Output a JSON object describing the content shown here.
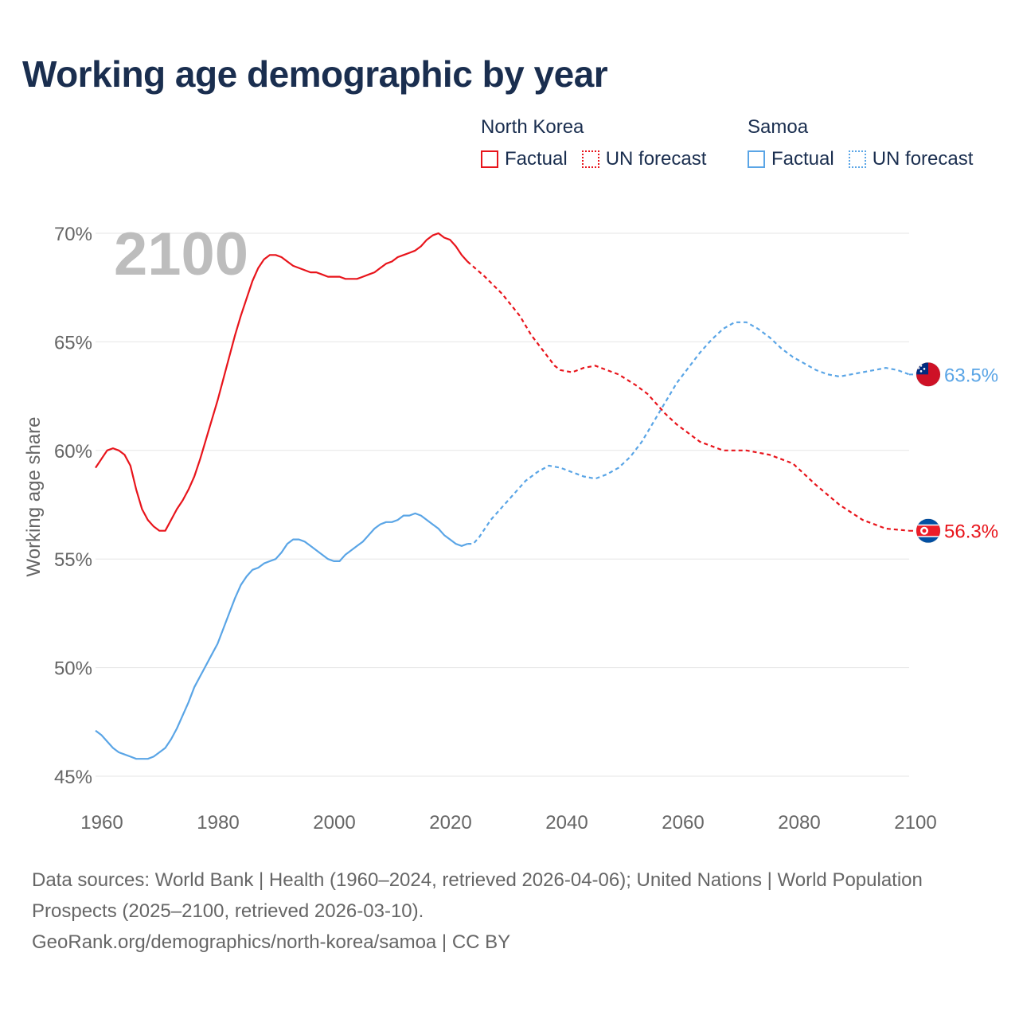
{
  "title": "Working age demographic by year",
  "legend": {
    "groups": [
      {
        "name": "North Korea",
        "factual_label": "Factual",
        "forecast_label": "UN forecast",
        "color": "#e8141b"
      },
      {
        "name": "Samoa",
        "factual_label": "Factual",
        "forecast_label": "UN forecast",
        "color": "#5aa5e6"
      }
    ]
  },
  "year_overlay": "2100",
  "footer": {
    "sources": "Data sources: World Bank | Health (1960–2024, retrieved 2026-04-06); United Nations | World Population Prospects (2025–2100, retrieved 2026-03-10).",
    "credit": "GeoRank.org/demographics/north-korea/samoa | CC BY"
  },
  "chart_data": {
    "type": "line",
    "title": "Working age demographic by year",
    "xlabel": "",
    "ylabel": "Working age share",
    "xlim": [
      1960,
      2100
    ],
    "ylim": [
      45,
      70
    ],
    "x_ticks": [
      1960,
      1980,
      2000,
      2020,
      2040,
      2060,
      2080,
      2100
    ],
    "x_tick_labels": [
      "1960",
      "1980",
      "2000",
      "2020",
      "2040",
      "2060",
      "2080",
      "2100"
    ],
    "y_ticks": [
      45,
      50,
      55,
      60,
      65,
      70
    ],
    "y_tick_labels": [
      "45%",
      "50%",
      "55%",
      "60%",
      "65%",
      "70%"
    ],
    "grid": true,
    "forecast_start": 2024,
    "series": [
      {
        "name": "North Korea",
        "color": "#e8141b",
        "end_label": "56.3%",
        "flag": "north-korea",
        "points": [
          [
            1960,
            59.2
          ],
          [
            1961,
            59.6
          ],
          [
            1962,
            60.0
          ],
          [
            1963,
            60.1
          ],
          [
            1964,
            60.0
          ],
          [
            1965,
            59.8
          ],
          [
            1966,
            59.3
          ],
          [
            1967,
            58.2
          ],
          [
            1968,
            57.3
          ],
          [
            1969,
            56.8
          ],
          [
            1970,
            56.5
          ],
          [
            1971,
            56.3
          ],
          [
            1972,
            56.3
          ],
          [
            1973,
            56.8
          ],
          [
            1974,
            57.3
          ],
          [
            1975,
            57.7
          ],
          [
            1976,
            58.2
          ],
          [
            1977,
            58.8
          ],
          [
            1978,
            59.6
          ],
          [
            1979,
            60.5
          ],
          [
            1980,
            61.4
          ],
          [
            1981,
            62.3
          ],
          [
            1982,
            63.3
          ],
          [
            1983,
            64.3
          ],
          [
            1984,
            65.3
          ],
          [
            1985,
            66.2
          ],
          [
            1986,
            67.0
          ],
          [
            1987,
            67.8
          ],
          [
            1988,
            68.4
          ],
          [
            1989,
            68.8
          ],
          [
            1990,
            69.0
          ],
          [
            1991,
            69.0
          ],
          [
            1992,
            68.9
          ],
          [
            1993,
            68.7
          ],
          [
            1994,
            68.5
          ],
          [
            1995,
            68.4
          ],
          [
            1996,
            68.3
          ],
          [
            1997,
            68.2
          ],
          [
            1998,
            68.2
          ],
          [
            1999,
            68.1
          ],
          [
            2000,
            68.0
          ],
          [
            2001,
            68.0
          ],
          [
            2002,
            68.0
          ],
          [
            2003,
            67.9
          ],
          [
            2004,
            67.9
          ],
          [
            2005,
            67.9
          ],
          [
            2006,
            68.0
          ],
          [
            2007,
            68.1
          ],
          [
            2008,
            68.2
          ],
          [
            2009,
            68.4
          ],
          [
            2010,
            68.6
          ],
          [
            2011,
            68.7
          ],
          [
            2012,
            68.9
          ],
          [
            2013,
            69.0
          ],
          [
            2014,
            69.1
          ],
          [
            2015,
            69.2
          ],
          [
            2016,
            69.4
          ],
          [
            2017,
            69.7
          ],
          [
            2018,
            69.9
          ],
          [
            2019,
            70.0
          ],
          [
            2020,
            69.8
          ],
          [
            2021,
            69.7
          ],
          [
            2022,
            69.4
          ],
          [
            2023,
            69.0
          ],
          [
            2024,
            68.7
          ],
          [
            2027,
            68.0
          ],
          [
            2030,
            67.2
          ],
          [
            2033,
            66.2
          ],
          [
            2035,
            65.3
          ],
          [
            2037,
            64.6
          ],
          [
            2039,
            63.9
          ],
          [
            2040,
            63.7
          ],
          [
            2042,
            63.6
          ],
          [
            2044,
            63.8
          ],
          [
            2046,
            63.9
          ],
          [
            2048,
            63.7
          ],
          [
            2050,
            63.5
          ],
          [
            2053,
            63.0
          ],
          [
            2055,
            62.6
          ],
          [
            2058,
            61.7
          ],
          [
            2060,
            61.2
          ],
          [
            2064,
            60.4
          ],
          [
            2068,
            60.0
          ],
          [
            2072,
            60.0
          ],
          [
            2076,
            59.8
          ],
          [
            2080,
            59.4
          ],
          [
            2084,
            58.4
          ],
          [
            2088,
            57.5
          ],
          [
            2092,
            56.8
          ],
          [
            2096,
            56.4
          ],
          [
            2100,
            56.3
          ]
        ]
      },
      {
        "name": "Samoa",
        "color": "#5aa5e6",
        "end_label": "63.5%",
        "flag": "samoa",
        "points": [
          [
            1960,
            47.1
          ],
          [
            1961,
            46.9
          ],
          [
            1962,
            46.6
          ],
          [
            1963,
            46.3
          ],
          [
            1964,
            46.1
          ],
          [
            1965,
            46.0
          ],
          [
            1966,
            45.9
          ],
          [
            1967,
            45.8
          ],
          [
            1968,
            45.8
          ],
          [
            1969,
            45.8
          ],
          [
            1970,
            45.9
          ],
          [
            1971,
            46.1
          ],
          [
            1972,
            46.3
          ],
          [
            1973,
            46.7
          ],
          [
            1974,
            47.2
          ],
          [
            1975,
            47.8
          ],
          [
            1976,
            48.4
          ],
          [
            1977,
            49.1
          ],
          [
            1978,
            49.6
          ],
          [
            1979,
            50.1
          ],
          [
            1980,
            50.6
          ],
          [
            1981,
            51.1
          ],
          [
            1982,
            51.8
          ],
          [
            1983,
            52.5
          ],
          [
            1984,
            53.2
          ],
          [
            1985,
            53.8
          ],
          [
            1986,
            54.2
          ],
          [
            1987,
            54.5
          ],
          [
            1988,
            54.6
          ],
          [
            1989,
            54.8
          ],
          [
            1990,
            54.9
          ],
          [
            1991,
            55.0
          ],
          [
            1992,
            55.3
          ],
          [
            1993,
            55.7
          ],
          [
            1994,
            55.9
          ],
          [
            1995,
            55.9
          ],
          [
            1996,
            55.8
          ],
          [
            1997,
            55.6
          ],
          [
            1998,
            55.4
          ],
          [
            1999,
            55.2
          ],
          [
            2000,
            55.0
          ],
          [
            2001,
            54.9
          ],
          [
            2002,
            54.9
          ],
          [
            2003,
            55.2
          ],
          [
            2004,
            55.4
          ],
          [
            2005,
            55.6
          ],
          [
            2006,
            55.8
          ],
          [
            2007,
            56.1
          ],
          [
            2008,
            56.4
          ],
          [
            2009,
            56.6
          ],
          [
            2010,
            56.7
          ],
          [
            2011,
            56.7
          ],
          [
            2012,
            56.8
          ],
          [
            2013,
            57.0
          ],
          [
            2014,
            57.0
          ],
          [
            2015,
            57.1
          ],
          [
            2016,
            57.0
          ],
          [
            2017,
            56.8
          ],
          [
            2018,
            56.6
          ],
          [
            2019,
            56.4
          ],
          [
            2020,
            56.1
          ],
          [
            2021,
            55.9
          ],
          [
            2022,
            55.7
          ],
          [
            2023,
            55.6
          ],
          [
            2024,
            55.7
          ],
          [
            2025,
            55.7
          ],
          [
            2026,
            56.0
          ],
          [
            2028,
            56.8
          ],
          [
            2030,
            57.4
          ],
          [
            2032,
            58.0
          ],
          [
            2034,
            58.6
          ],
          [
            2036,
            59.0
          ],
          [
            2038,
            59.3
          ],
          [
            2040,
            59.2
          ],
          [
            2042,
            59.0
          ],
          [
            2044,
            58.8
          ],
          [
            2046,
            58.7
          ],
          [
            2048,
            58.9
          ],
          [
            2050,
            59.2
          ],
          [
            2052,
            59.7
          ],
          [
            2054,
            60.4
          ],
          [
            2056,
            61.3
          ],
          [
            2058,
            62.2
          ],
          [
            2060,
            63.1
          ],
          [
            2062,
            63.8
          ],
          [
            2064,
            64.5
          ],
          [
            2066,
            65.1
          ],
          [
            2068,
            65.6
          ],
          [
            2070,
            65.9
          ],
          [
            2072,
            65.9
          ],
          [
            2074,
            65.6
          ],
          [
            2076,
            65.2
          ],
          [
            2078,
            64.7
          ],
          [
            2080,
            64.3
          ],
          [
            2082,
            64.0
          ],
          [
            2084,
            63.7
          ],
          [
            2086,
            63.5
          ],
          [
            2088,
            63.4
          ],
          [
            2090,
            63.5
          ],
          [
            2092,
            63.6
          ],
          [
            2094,
            63.7
          ],
          [
            2096,
            63.8
          ],
          [
            2098,
            63.7
          ],
          [
            2100,
            63.5
          ]
        ]
      }
    ]
  }
}
